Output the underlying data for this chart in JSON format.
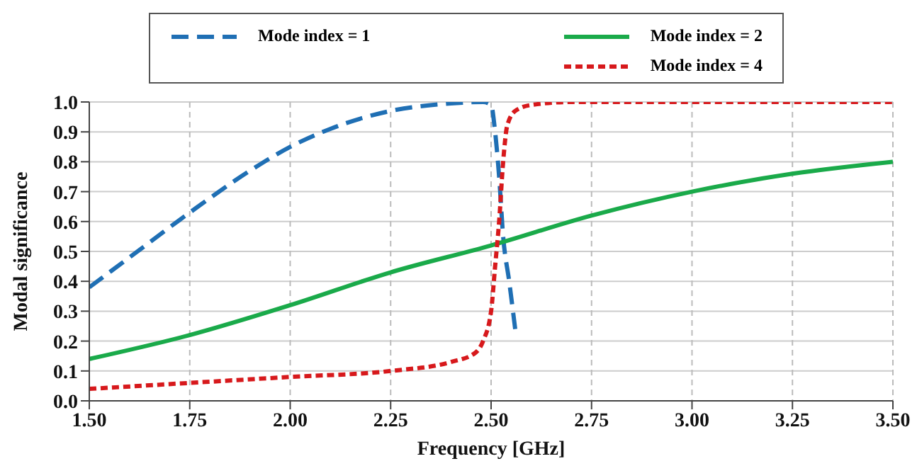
{
  "chart_data": {
    "type": "line",
    "xlabel": "Frequency [GHz]",
    "ylabel": "Modal significance",
    "xlim": [
      1.5,
      3.5
    ],
    "xticks": [
      {
        "value": 1.5,
        "label": "1.50"
      },
      {
        "value": 1.75,
        "label": "1.75"
      },
      {
        "value": 2,
        "label": "2.00"
      },
      {
        "value": 2.25,
        "label": "2.25"
      },
      {
        "value": 2.5,
        "label": "2.50"
      },
      {
        "value": 2.75,
        "label": "2.75"
      },
      {
        "value": 3,
        "label": "3.00"
      },
      {
        "value": 3.25,
        "label": "3.25"
      },
      {
        "value": 3.5,
        "label": "3.50"
      }
    ],
    "ylim": [
      0,
      1
    ],
    "yticks": [
      {
        "value": 0,
        "label": "0.0"
      },
      0.1,
      0.2,
      0.3,
      0.4,
      0.5,
      0.6,
      0.7,
      0.8,
      0.9,
      {
        "value": 1,
        "label": "1.0"
      }
    ],
    "grid": true,
    "legend": "top",
    "marker": "none",
    "series": [
      {
        "name": "Mode index = 1",
        "color": "#1f6fb4",
        "line_style": "dashed",
        "x": [
          1.5,
          1.6,
          1.75,
          1.9,
          2.0,
          2.1,
          2.25,
          2.4,
          2.48,
          2.5,
          2.51,
          2.52,
          2.53,
          2.545,
          2.56
        ],
        "values": [
          0.38,
          0.48,
          0.63,
          0.77,
          0.85,
          0.91,
          0.97,
          0.995,
          1.0,
          0.99,
          0.9,
          0.75,
          0.55,
          0.4,
          0.24
        ]
      },
      {
        "name": "Mode index = 2",
        "color": "#1aaa4a",
        "line_style": "solid",
        "x": [
          1.5,
          1.75,
          2.0,
          2.25,
          2.5,
          2.75,
          3.0,
          3.25,
          3.5
        ],
        "values": [
          0.14,
          0.22,
          0.32,
          0.43,
          0.52,
          0.62,
          0.7,
          0.76,
          0.8
        ]
      },
      {
        "name": "Mode index = 4",
        "color": "#d7191c",
        "line_style": "dotted",
        "x": [
          1.5,
          1.75,
          2.0,
          2.25,
          2.4,
          2.46,
          2.48,
          2.5,
          2.51,
          2.52,
          2.53,
          2.54,
          2.56,
          2.6,
          2.7,
          3.5
        ],
        "values": [
          0.04,
          0.06,
          0.08,
          0.1,
          0.13,
          0.16,
          0.2,
          0.3,
          0.45,
          0.6,
          0.8,
          0.92,
          0.97,
          0.99,
          1.0,
          1.0
        ]
      }
    ]
  }
}
